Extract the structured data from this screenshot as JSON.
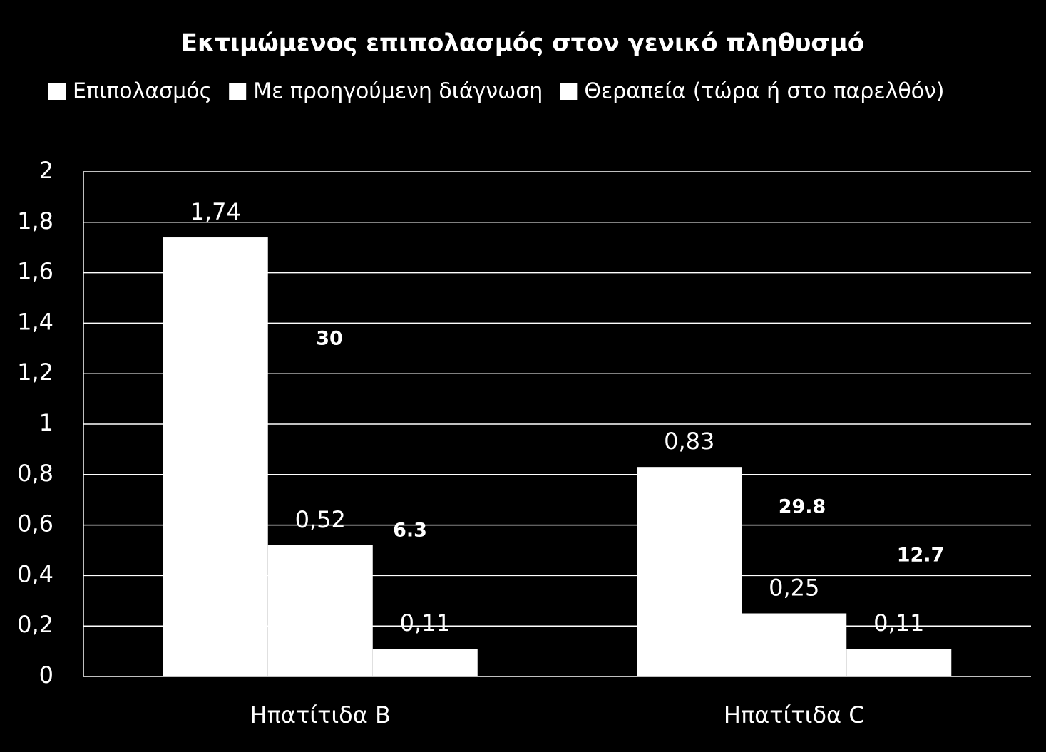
{
  "chart_data": {
    "type": "bar",
    "title": "Εκτιμώμενος επιπολασμός στον γενικό πληθυσμό",
    "categories": [
      "Ηπατίτιδα B",
      "Ηπατίτιδα C"
    ],
    "series": [
      {
        "name": "Επιπολασμός",
        "color": "#ffffff",
        "values": [
          1.74,
          0.83
        ],
        "value_labels": [
          "1,74",
          "0,83"
        ]
      },
      {
        "name": "Με προηγούμενη διάγνωση",
        "color": "#ffffff",
        "values": [
          0.52,
          0.25
        ],
        "value_labels": [
          "0,52",
          "0,25"
        ]
      },
      {
        "name": "Θεραπεία (τώρα ή στο παρελθόν)",
        "color": "#ffffff",
        "values": [
          0.11,
          0.11
        ],
        "value_labels": [
          "0,11",
          "0,11"
        ]
      }
    ],
    "annotations": [
      "30",
      "6.3",
      "29.8",
      "12.7"
    ],
    "ylim": [
      0,
      2
    ],
    "yticks": [
      0,
      {
        "value": 0.2,
        "label": "0,2"
      },
      {
        "value": 0.4,
        "label": "0,4"
      },
      {
        "value": 0.6,
        "label": "0,6"
      },
      {
        "value": 0.8,
        "label": "0,8"
      },
      1,
      {
        "value": 1.2,
        "label": "1,2"
      },
      {
        "value": 1.4,
        "label": "1,4"
      },
      {
        "value": 1.6,
        "label": "1,6"
      },
      {
        "value": 1.8,
        "label": "1,8"
      },
      2
    ],
    "grid": true,
    "legend": "top"
  }
}
